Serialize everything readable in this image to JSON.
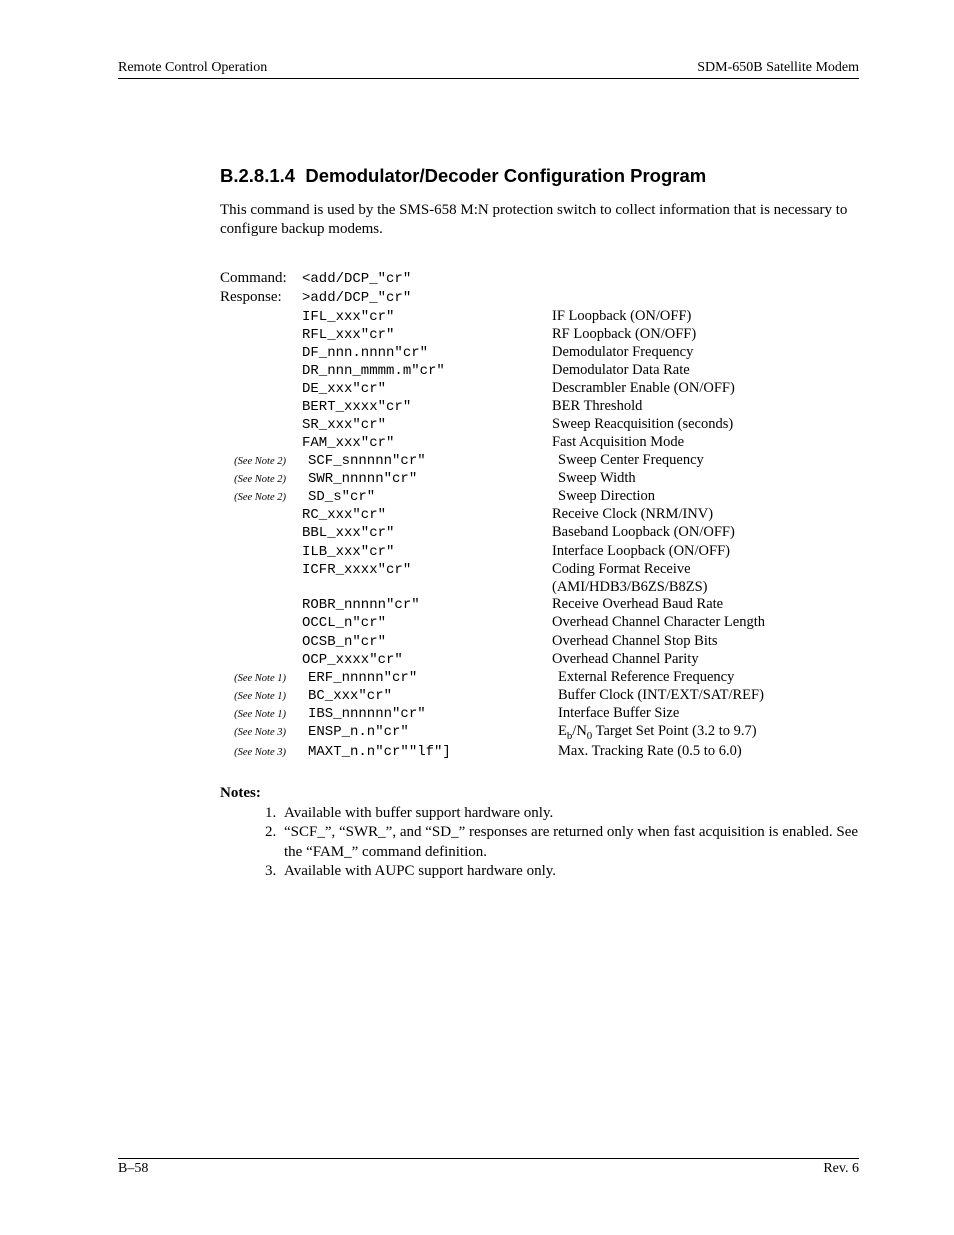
{
  "header": {
    "left": "Remote Control Operation",
    "right": "SDM-650B Satellite Modem"
  },
  "section": {
    "number": "B.2.8.1.4",
    "title": "Demodulator/Decoder Configuration Program",
    "intro": "This command is used by the SMS-658 M:N protection switch to collect information that is necessary to configure backup modems."
  },
  "labels": {
    "command": "Command:",
    "response": "Response:",
    "notes_heading": "Notes:"
  },
  "command_line": "<add/DCP_\"cr\"",
  "response_line": ">add/DCP_\"cr\"",
  "rows": [
    {
      "note": "",
      "code": "IFL_xxx\"cr\"",
      "desc": "IF Loopback (ON/OFF)"
    },
    {
      "note": "",
      "code": "RFL_xxx\"cr\"",
      "desc": "RF Loopback (ON/OFF)"
    },
    {
      "note": "",
      "code": "DF_nnn.nnnn\"cr\"",
      "desc": "Demodulator Frequency"
    },
    {
      "note": "",
      "code": "DR_nnn_mmmm.m\"cr\"",
      "desc": "Demodulator Data Rate"
    },
    {
      "note": "",
      "code": "DE_xxx\"cr\"",
      "desc": "Descrambler Enable (ON/OFF)"
    },
    {
      "note": "",
      "code": "BERT_xxxx\"cr\"",
      "desc": "BER Threshold"
    },
    {
      "note": "",
      "code": "SR_xxx\"cr\"",
      "desc": "Sweep Reacquisition (seconds)"
    },
    {
      "note": "",
      "code": "FAM_xxx\"cr\"",
      "desc": "Fast Acquisition Mode"
    },
    {
      "note": "(See Note 2)",
      "code": "SCF_snnnnn\"cr\"",
      "desc": "Sweep Center Frequency"
    },
    {
      "note": "(See Note 2)",
      "code": "SWR_nnnnn\"cr\"",
      "desc": "Sweep Width"
    },
    {
      "note": "(See Note 2)",
      "code": "SD_s\"cr\"",
      "desc": "Sweep Direction"
    },
    {
      "note": "",
      "code": "RC_xxx\"cr\"",
      "desc": "Receive Clock (NRM/INV)"
    },
    {
      "note": "",
      "code": "BBL_xxx\"cr\"",
      "desc": "Baseband Loopback (ON/OFF)"
    },
    {
      "note": "",
      "code": "ILB_xxx\"cr\"",
      "desc": "Interface Loopback (ON/OFF)"
    },
    {
      "note": "",
      "code": "ICFR_xxxx\"cr\"",
      "desc": "Coding Format Receive"
    },
    {
      "note": "",
      "code": "",
      "desc": "(AMI/HDB3/B6ZS/B8ZS)"
    },
    {
      "note": "",
      "code": "ROBR_nnnnn\"cr\"",
      "desc": "Receive Overhead Baud Rate"
    },
    {
      "note": "",
      "code": "OCCL_n\"cr\"",
      "desc": "Overhead Channel Character Length"
    },
    {
      "note": "",
      "code": "OCSB_n\"cr\"",
      "desc": "Overhead Channel Stop Bits"
    },
    {
      "note": "",
      "code": "OCP_xxxx\"cr\"",
      "desc": "Overhead Channel Parity"
    },
    {
      "note": "(See Note 1)",
      "code": "ERF_nnnnn\"cr\"",
      "desc": "External Reference Frequency"
    },
    {
      "note": "(See Note 1)",
      "code": "BC_xxx\"cr\"",
      "desc": "Buffer Clock (INT/EXT/SAT/REF)"
    },
    {
      "note": "(See Note 1)",
      "code": "IBS_nnnnnn\"cr\"",
      "desc": "Interface Buffer Size"
    },
    {
      "note": "(See Note 3)",
      "code": "ENSP_n.n\"cr\"",
      "desc_html": "E<sub>b</sub>/N<sub>0</sub> Target Set Point (3.2 to 9.7)"
    },
    {
      "note": "(See Note 3)",
      "code": "MAXT_n.n\"cr\"\"lf\"]",
      "desc": "Max. Tracking Rate (0.5 to 6.0)"
    }
  ],
  "notes": [
    "Available with buffer support hardware only.",
    "“SCF_”, “SWR_”, and “SD_” responses are returned only when fast acquisition is enabled. See the “FAM_” command definition.",
    "Available with AUPC support hardware only."
  ],
  "footer": {
    "left": "B–58",
    "right": "Rev. 6"
  }
}
